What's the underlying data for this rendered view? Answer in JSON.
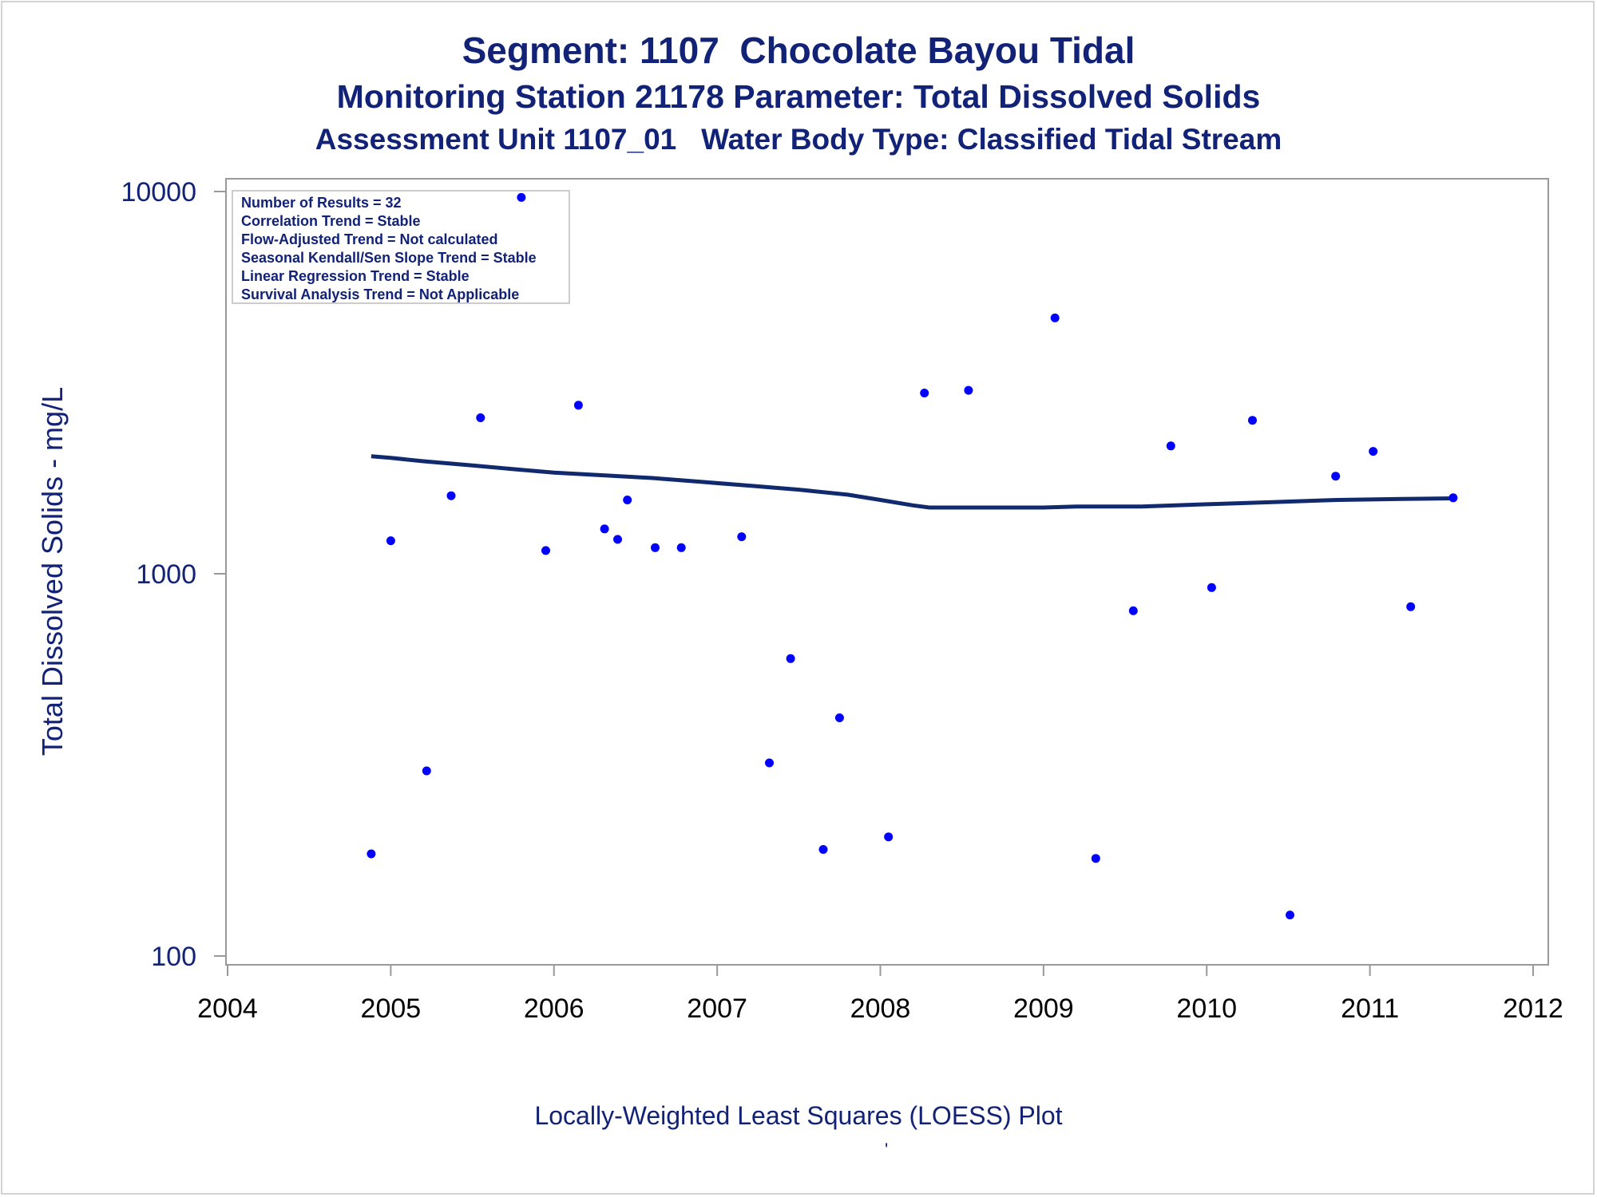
{
  "titles": {
    "line1": "Segment: 1107  Chocolate Bayou Tidal",
    "line2": "Monitoring Station 21178 Parameter: Total Dissolved Solids",
    "line3": "Assessment Unit 1107_01   Water Body Type: Classified Tidal Stream"
  },
  "footnote": "Locally-Weighted Least Squares (LOESS) Plot",
  "footmark": "'",
  "colors": {
    "text": "#112277",
    "points": "#0000ff",
    "loess": "#112a6e",
    "frame": "#999999"
  },
  "chart_data": {
    "type": "scatter",
    "title": "Segment: 1107  Chocolate Bayou Tidal",
    "ylabel": "Total Dissolved Solids - mg/L",
    "xlabel": "",
    "xlim": [
      2004,
      2012
    ],
    "ylim": [
      100,
      10000
    ],
    "yscale": "log",
    "x_ticks": [
      "2004",
      "2005",
      "2006",
      "2007",
      "2008",
      "2009",
      "2010",
      "2011",
      "2012"
    ],
    "y_ticks": [
      "100",
      "1000",
      "10000"
    ],
    "grid": false,
    "legend_placement": "top-left",
    "stats_box": [
      "Number of Results = 32",
      "Correlation Trend = Stable",
      "Flow-Adjusted Trend = Not calculated",
      "Seasonal Kendall/Sen Slope Trend = Stable",
      "Linear Regression Trend = Stable",
      "Survival Analysis Trend = Not Applicable"
    ],
    "series": [
      {
        "type": "scatter",
        "points": [
          [
            2004.88,
            185
          ],
          [
            2005.0,
            1220
          ],
          [
            2005.22,
            305
          ],
          [
            2005.37,
            1600
          ],
          [
            2005.55,
            2560
          ],
          [
            2005.8,
            9650
          ],
          [
            2005.95,
            1150
          ],
          [
            2006.15,
            2760
          ],
          [
            2006.31,
            1310
          ],
          [
            2006.39,
            1230
          ],
          [
            2006.45,
            1560
          ],
          [
            2006.62,
            1170
          ],
          [
            2006.78,
            1170
          ],
          [
            2007.15,
            1250
          ],
          [
            2007.32,
            320
          ],
          [
            2007.45,
            600
          ],
          [
            2007.65,
            190
          ],
          [
            2007.75,
            420
          ],
          [
            2008.05,
            205
          ],
          [
            2008.27,
            2970
          ],
          [
            2008.54,
            3020
          ],
          [
            2009.07,
            4670
          ],
          [
            2009.32,
            180
          ],
          [
            2009.55,
            800
          ],
          [
            2009.78,
            2160
          ],
          [
            2010.03,
            920
          ],
          [
            2010.28,
            2520
          ],
          [
            2010.51,
            128
          ],
          [
            2010.79,
            1800
          ],
          [
            2011.02,
            2090
          ],
          [
            2011.25,
            820
          ],
          [
            2011.51,
            1580
          ]
        ]
      },
      {
        "type": "line",
        "points": [
          [
            2004.88,
            2030
          ],
          [
            2005.0,
            2010
          ],
          [
            2005.2,
            1970
          ],
          [
            2005.5,
            1920
          ],
          [
            2005.8,
            1870
          ],
          [
            2006.0,
            1840
          ],
          [
            2006.3,
            1810
          ],
          [
            2006.6,
            1780
          ],
          [
            2006.9,
            1740
          ],
          [
            2007.2,
            1700
          ],
          [
            2007.5,
            1660
          ],
          [
            2007.8,
            1610
          ],
          [
            2008.0,
            1560
          ],
          [
            2008.2,
            1510
          ],
          [
            2008.3,
            1490
          ],
          [
            2008.6,
            1490
          ],
          [
            2009.0,
            1490
          ],
          [
            2009.2,
            1500
          ],
          [
            2009.6,
            1500
          ],
          [
            2010.0,
            1520
          ],
          [
            2010.4,
            1540
          ],
          [
            2010.8,
            1560
          ],
          [
            2011.2,
            1570
          ],
          [
            2011.51,
            1575
          ]
        ]
      }
    ]
  }
}
